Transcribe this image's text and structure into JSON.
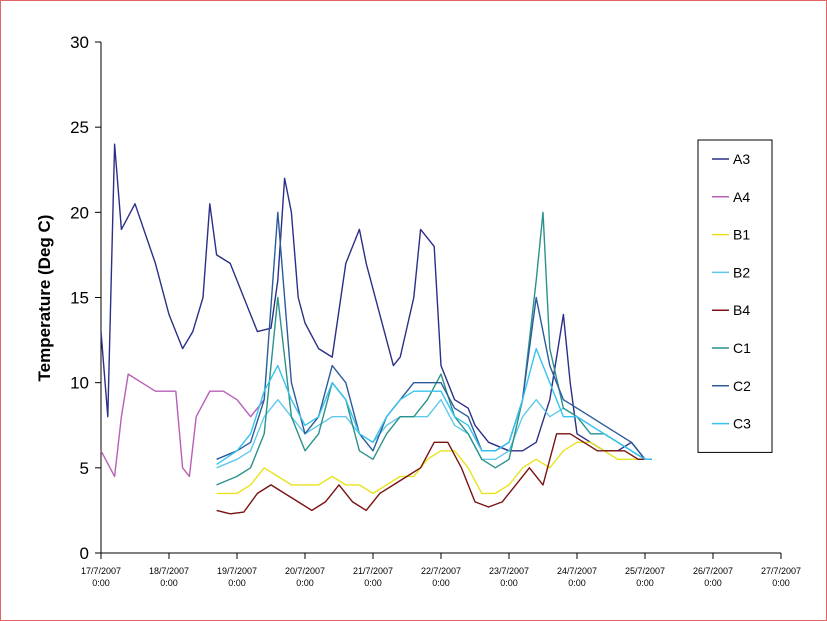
{
  "chart_data": {
    "type": "line",
    "title": "",
    "xlabel": "",
    "ylabel": "Temperature (Deg C)",
    "ylim": [
      0,
      30
    ],
    "yticks": [
      "0",
      "5",
      "10",
      "15",
      "20",
      "25",
      "30"
    ],
    "xlim": [
      "17/7/2007 0:00",
      "27/7/2007 0:00"
    ],
    "xticks": [
      [
        "17/7/2007",
        "0:00"
      ],
      [
        "18/7/2007",
        "0:00"
      ],
      [
        "19/7/2007",
        "0:00"
      ],
      [
        "20/7/2007",
        "0:00"
      ],
      [
        "21/7/2007",
        "0:00"
      ],
      [
        "22/7/2007",
        "0:00"
      ],
      [
        "23/7/2007",
        "0:00"
      ],
      [
        "24/7/2007",
        "0:00"
      ],
      [
        "25/7/2007",
        "0:00"
      ],
      [
        "26/7/2007",
        "0:00"
      ],
      [
        "27/7/2007",
        "0:00"
      ]
    ],
    "grid": false,
    "legend_position": "right",
    "series": [
      {
        "name": "A3",
        "color": "#2b2f86",
        "points": [
          [
            0.0,
            13
          ],
          [
            0.1,
            8
          ],
          [
            0.2,
            24
          ],
          [
            0.3,
            19
          ],
          [
            0.5,
            20.5
          ],
          [
            0.8,
            17
          ],
          [
            1.0,
            14
          ],
          [
            1.2,
            12
          ],
          [
            1.35,
            13
          ],
          [
            1.5,
            15
          ],
          [
            1.6,
            20.5
          ],
          [
            1.7,
            17.5
          ],
          [
            1.9,
            17
          ],
          [
            2.1,
            15
          ],
          [
            2.3,
            13
          ],
          [
            2.5,
            13.2
          ],
          [
            2.6,
            16
          ],
          [
            2.7,
            22
          ],
          [
            2.8,
            20
          ],
          [
            2.9,
            15
          ],
          [
            3.0,
            13.5
          ],
          [
            3.2,
            12
          ],
          [
            3.4,
            11.5
          ],
          [
            3.6,
            17
          ],
          [
            3.8,
            19
          ],
          [
            3.9,
            17
          ],
          [
            4.1,
            14
          ],
          [
            4.3,
            11
          ],
          [
            4.4,
            11.5
          ],
          [
            4.6,
            15
          ],
          [
            4.7,
            19
          ],
          [
            4.9,
            18
          ],
          [
            5.0,
            11
          ],
          [
            5.2,
            9
          ],
          [
            5.4,
            8.5
          ],
          [
            5.5,
            7.5
          ],
          [
            5.7,
            6.5
          ],
          [
            6.0,
            6
          ],
          [
            6.2,
            6
          ],
          [
            6.4,
            6.5
          ],
          [
            6.6,
            9
          ],
          [
            6.8,
            14
          ],
          [
            6.9,
            10
          ],
          [
            7.0,
            7
          ],
          [
            7.2,
            6.5
          ],
          [
            7.4,
            6
          ],
          [
            7.6,
            6
          ],
          [
            7.8,
            6.5
          ],
          [
            8.0,
            5.5
          ],
          [
            8.1,
            5.5
          ]
        ]
      },
      {
        "name": "A4",
        "color": "#b75fb6",
        "points": [
          [
            0.0,
            6
          ],
          [
            0.2,
            4.5
          ],
          [
            0.3,
            8
          ],
          [
            0.4,
            10.5
          ],
          [
            0.6,
            10
          ],
          [
            0.8,
            9.5
          ],
          [
            1.0,
            9.5
          ],
          [
            1.1,
            9.5
          ],
          [
            1.2,
            5
          ],
          [
            1.3,
            4.5
          ],
          [
            1.4,
            8
          ],
          [
            1.6,
            9.5
          ],
          [
            1.8,
            9.5
          ],
          [
            2.0,
            9
          ],
          [
            2.2,
            8
          ],
          [
            2.4,
            9
          ]
        ]
      },
      {
        "name": "B1",
        "color": "#e8e31e",
        "points": [
          [
            1.7,
            3.5
          ],
          [
            2.0,
            3.5
          ],
          [
            2.2,
            4
          ],
          [
            2.4,
            5
          ],
          [
            2.6,
            4.5
          ],
          [
            2.8,
            4
          ],
          [
            3.0,
            4
          ],
          [
            3.2,
            4
          ],
          [
            3.4,
            4.5
          ],
          [
            3.6,
            4
          ],
          [
            3.8,
            4
          ],
          [
            4.0,
            3.5
          ],
          [
            4.2,
            4
          ],
          [
            4.4,
            4.5
          ],
          [
            4.6,
            4.5
          ],
          [
            4.8,
            5.5
          ],
          [
            5.0,
            6
          ],
          [
            5.2,
            6
          ],
          [
            5.4,
            5
          ],
          [
            5.6,
            3.5
          ],
          [
            5.8,
            3.5
          ],
          [
            6.0,
            4
          ],
          [
            6.2,
            5
          ],
          [
            6.4,
            5.5
          ],
          [
            6.6,
            5
          ],
          [
            6.8,
            6
          ],
          [
            7.0,
            6.5
          ],
          [
            7.2,
            6.5
          ],
          [
            7.4,
            6
          ],
          [
            7.6,
            5.5
          ],
          [
            7.8,
            5.5
          ],
          [
            8.0,
            5.5
          ],
          [
            8.1,
            5.5
          ]
        ]
      },
      {
        "name": "B2",
        "color": "#5ec9ea",
        "points": [
          [
            1.7,
            5
          ],
          [
            2.0,
            5.5
          ],
          [
            2.2,
            6
          ],
          [
            2.4,
            8
          ],
          [
            2.6,
            9
          ],
          [
            2.8,
            8
          ],
          [
            3.0,
            7
          ],
          [
            3.2,
            7.5
          ],
          [
            3.4,
            8
          ],
          [
            3.6,
            8
          ],
          [
            3.8,
            7
          ],
          [
            4.0,
            6.5
          ],
          [
            4.2,
            7.5
          ],
          [
            4.4,
            8
          ],
          [
            4.6,
            8
          ],
          [
            4.8,
            8
          ],
          [
            5.0,
            9
          ],
          [
            5.2,
            7.5
          ],
          [
            5.4,
            7
          ],
          [
            5.6,
            5.5
          ],
          [
            5.8,
            5.5
          ],
          [
            6.0,
            6
          ],
          [
            6.2,
            8
          ],
          [
            6.4,
            9
          ],
          [
            6.6,
            8
          ],
          [
            6.8,
            8.5
          ],
          [
            7.0,
            8
          ],
          [
            7.2,
            7.5
          ],
          [
            7.4,
            7
          ],
          [
            7.6,
            6.5
          ],
          [
            7.8,
            6
          ],
          [
            8.0,
            5.5
          ],
          [
            8.1,
            5.5
          ]
        ]
      },
      {
        "name": "B4",
        "color": "#7a1212",
        "points": [
          [
            1.7,
            2.5
          ],
          [
            1.9,
            2.3
          ],
          [
            2.1,
            2.4
          ],
          [
            2.3,
            3.5
          ],
          [
            2.5,
            4
          ],
          [
            2.7,
            3.5
          ],
          [
            2.9,
            3
          ],
          [
            3.1,
            2.5
          ],
          [
            3.3,
            3
          ],
          [
            3.5,
            4
          ],
          [
            3.7,
            3
          ],
          [
            3.9,
            2.5
          ],
          [
            4.1,
            3.5
          ],
          [
            4.3,
            4
          ],
          [
            4.5,
            4.5
          ],
          [
            4.7,
            5
          ],
          [
            4.9,
            6.5
          ],
          [
            5.1,
            6.5
          ],
          [
            5.3,
            5
          ],
          [
            5.5,
            3
          ],
          [
            5.7,
            2.7
          ],
          [
            5.9,
            3
          ],
          [
            6.1,
            4
          ],
          [
            6.3,
            5
          ],
          [
            6.5,
            4
          ],
          [
            6.7,
            7
          ],
          [
            6.9,
            7
          ],
          [
            7.1,
            6.5
          ],
          [
            7.3,
            6
          ],
          [
            7.5,
            6
          ],
          [
            7.7,
            6
          ],
          [
            7.9,
            5.5
          ],
          [
            8.1,
            5.5
          ]
        ]
      },
      {
        "name": "C1",
        "color": "#2a9289",
        "points": [
          [
            1.7,
            4
          ],
          [
            2.0,
            4.5
          ],
          [
            2.2,
            5
          ],
          [
            2.4,
            7
          ],
          [
            2.6,
            15
          ],
          [
            2.8,
            8
          ],
          [
            3.0,
            6
          ],
          [
            3.2,
            7
          ],
          [
            3.4,
            10
          ],
          [
            3.6,
            9
          ],
          [
            3.8,
            6
          ],
          [
            4.0,
            5.5
          ],
          [
            4.2,
            7
          ],
          [
            4.4,
            8
          ],
          [
            4.6,
            8
          ],
          [
            4.8,
            9
          ],
          [
            5.0,
            10.5
          ],
          [
            5.2,
            8
          ],
          [
            5.4,
            7
          ],
          [
            5.6,
            5.5
          ],
          [
            5.8,
            5
          ],
          [
            6.0,
            5.5
          ],
          [
            6.2,
            9
          ],
          [
            6.4,
            16
          ],
          [
            6.5,
            20
          ],
          [
            6.6,
            12
          ],
          [
            6.8,
            8.5
          ],
          [
            7.0,
            8
          ],
          [
            7.2,
            7
          ],
          [
            7.4,
            7
          ],
          [
            7.6,
            6.5
          ],
          [
            7.8,
            6
          ],
          [
            8.0,
            5.5
          ],
          [
            8.1,
            5.5
          ]
        ]
      },
      {
        "name": "C2",
        "color": "#2c5b9c",
        "points": [
          [
            1.7,
            5.5
          ],
          [
            2.0,
            6
          ],
          [
            2.2,
            6.5
          ],
          [
            2.4,
            9
          ],
          [
            2.6,
            20
          ],
          [
            2.8,
            10
          ],
          [
            3.0,
            7
          ],
          [
            3.2,
            8
          ],
          [
            3.4,
            11
          ],
          [
            3.6,
            10
          ],
          [
            3.8,
            7
          ],
          [
            4.0,
            6
          ],
          [
            4.2,
            8
          ],
          [
            4.4,
            9
          ],
          [
            4.6,
            10
          ],
          [
            4.8,
            10
          ],
          [
            5.0,
            10
          ],
          [
            5.2,
            8.5
          ],
          [
            5.4,
            8
          ],
          [
            5.6,
            6
          ],
          [
            5.8,
            6
          ],
          [
            6.0,
            6.5
          ],
          [
            6.2,
            9
          ],
          [
            6.4,
            15
          ],
          [
            6.6,
            11
          ],
          [
            6.8,
            9
          ],
          [
            7.0,
            8.5
          ],
          [
            7.2,
            8
          ],
          [
            7.4,
            7.5
          ],
          [
            7.6,
            7
          ],
          [
            7.8,
            6.5
          ],
          [
            8.0,
            5.5
          ],
          [
            8.1,
            5.5
          ]
        ]
      },
      {
        "name": "C3",
        "color": "#36c3ee",
        "points": [
          [
            1.7,
            5.2
          ],
          [
            2.0,
            6
          ],
          [
            2.2,
            7
          ],
          [
            2.4,
            9.5
          ],
          [
            2.6,
            11
          ],
          [
            2.8,
            9
          ],
          [
            3.0,
            7.5
          ],
          [
            3.2,
            8
          ],
          [
            3.4,
            10
          ],
          [
            3.6,
            9
          ],
          [
            3.8,
            7
          ],
          [
            4.0,
            6.5
          ],
          [
            4.2,
            8
          ],
          [
            4.4,
            9
          ],
          [
            4.6,
            9.5
          ],
          [
            4.8,
            9.5
          ],
          [
            5.0,
            9.5
          ],
          [
            5.2,
            8
          ],
          [
            5.4,
            7.5
          ],
          [
            5.6,
            6
          ],
          [
            5.8,
            6
          ],
          [
            6.0,
            6.5
          ],
          [
            6.2,
            9
          ],
          [
            6.4,
            12
          ],
          [
            6.6,
            10
          ],
          [
            6.8,
            8
          ],
          [
            7.0,
            8
          ],
          [
            7.2,
            7.5
          ],
          [
            7.4,
            7
          ],
          [
            7.6,
            6.5
          ],
          [
            7.8,
            6
          ],
          [
            8.0,
            5.5
          ],
          [
            8.1,
            5.5
          ]
        ]
      }
    ]
  }
}
